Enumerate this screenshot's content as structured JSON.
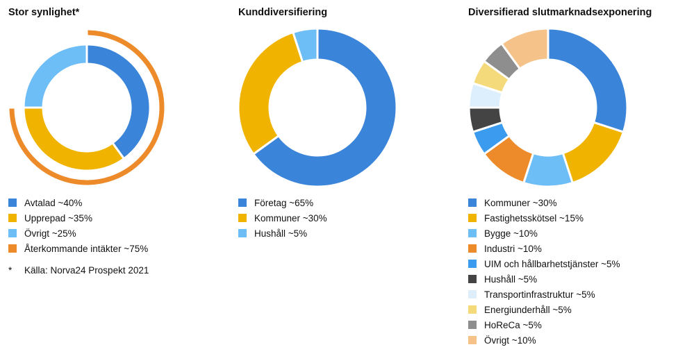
{
  "chart_data": [
    {
      "type": "pie",
      "title": "Stor synlighet*",
      "rings": [
        {
          "name": "",
          "slices": [
            {
              "label": "Återkommande intäkter ~75%",
              "value": 75,
              "color": "#ED8B2A"
            }
          ]
        },
        {
          "name": "",
          "slices": [
            {
              "label": "Avtalad ~40%",
              "value": 40,
              "color": "#3A84D9"
            },
            {
              "label": "Upprepad ~35%",
              "value": 35,
              "color": "#F0B400"
            },
            {
              "label": "Övrigt ~25%",
              "value": 25,
              "color": "#6DBDF7"
            }
          ]
        }
      ],
      "legend": [
        {
          "label": "Avtalad ~40%",
          "color": "#3A84D9"
        },
        {
          "label": "Upprepad ~35%",
          "color": "#F0B400"
        },
        {
          "label": "Övrigt ~25%",
          "color": "#6DBDF7"
        },
        {
          "label": "Återkommande intäkter ~75%",
          "color": "#ED8B2A"
        }
      ],
      "footnote": {
        "marker": "*",
        "text": "Källa: Norva24 Prospekt 2021"
      },
      "legend_position": "bottom"
    },
    {
      "type": "pie",
      "title": "Kunddiversifiering",
      "slices": [
        {
          "label": "Företag ~65%",
          "value": 65,
          "color": "#3A84D9"
        },
        {
          "label": "Kommuner ~30%",
          "value": 30,
          "color": "#F0B400"
        },
        {
          "label": "Hushåll ~5%",
          "value": 5,
          "color": "#6DBDF7"
        }
      ],
      "legend_position": "bottom"
    },
    {
      "type": "pie",
      "title": "Diversifierad slutmarknadsexponering",
      "slices": [
        {
          "label": "Kommuner ~30%",
          "value": 30,
          "color": "#3A84D9"
        },
        {
          "label": "Fastighetsskötsel ~15%",
          "value": 15,
          "color": "#F0B400"
        },
        {
          "label": "Bygge ~10%",
          "value": 10,
          "color": "#6DBDF7"
        },
        {
          "label": "Industri ~10%",
          "value": 10,
          "color": "#ED8B2A"
        },
        {
          "label": "UIM och hållbarhetstjänster ~5%",
          "value": 5,
          "color": "#3B9BEF"
        },
        {
          "label": "Hushåll ~5%",
          "value": 5,
          "color": "#444444"
        },
        {
          "label": "Transportinfrastruktur ~5%",
          "value": 5,
          "color": "#DDEFFC"
        },
        {
          "label": "Energiunderhåll ~5%",
          "value": 5,
          "color": "#F5DA7C"
        },
        {
          "label": "HoReCa ~5%",
          "value": 5,
          "color": "#8E8E8E"
        },
        {
          "label": "Övrigt ~10%",
          "value": 10,
          "color": "#F5C289"
        }
      ],
      "legend_position": "bottom"
    }
  ]
}
